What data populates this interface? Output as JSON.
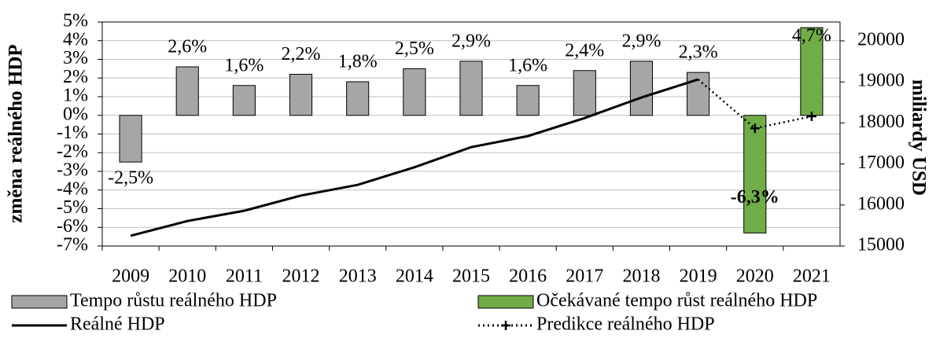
{
  "chart_data": {
    "type": "bar",
    "y_label": "změna reálného HDP",
    "y2_label": "miliardy USD",
    "categories": [
      "2009",
      "2010",
      "2011",
      "2012",
      "2013",
      "2014",
      "2015",
      "2016",
      "2017",
      "2018",
      "2019",
      "2020",
      "2021"
    ],
    "series": [
      {
        "name": "Tempo růstu reálného HDP",
        "type": "bar",
        "color": "#a6a6a6",
        "values": [
          -2.5,
          2.6,
          1.6,
          2.2,
          1.8,
          2.5,
          2.9,
          1.6,
          2.4,
          2.9,
          2.3,
          null,
          null
        ],
        "value_labels": [
          "-2,5%",
          "2,6%",
          "1,6%",
          "2,2%",
          "1,8%",
          "2,5%",
          "2,9%",
          "1,6%",
          "2,4%",
          "2,9%",
          "2,3%",
          null,
          null
        ]
      },
      {
        "name": "Očekávané tempo růst reálného HDP",
        "type": "bar",
        "color": "#70ad47",
        "values": [
          null,
          null,
          null,
          null,
          null,
          null,
          null,
          null,
          null,
          null,
          null,
          -6.3,
          4.7
        ],
        "value_labels": [
          null,
          null,
          null,
          null,
          null,
          null,
          null,
          null,
          null,
          null,
          null,
          "-6,3%",
          "4,7%"
        ]
      },
      {
        "name": "Reálné HDP",
        "type": "line",
        "axis": "y2",
        "color": "#000000",
        "linestyle": "solid",
        "values": [
          15250,
          15610,
          15860,
          16230,
          16490,
          16920,
          17410,
          17680,
          18120,
          18620,
          19060,
          null,
          null
        ]
      },
      {
        "name": "Predikce reálného HDP",
        "type": "line",
        "axis": "y2",
        "color": "#000000",
        "linestyle": "dotted",
        "marker": "+",
        "values": [
          null,
          null,
          null,
          null,
          null,
          null,
          null,
          null,
          null,
          null,
          19060,
          17870,
          18160
        ]
      }
    ],
    "ylim": [
      -7,
      5
    ],
    "yticks": [
      {
        "value": 5,
        "label": "5%"
      },
      {
        "value": 4,
        "label": "4%"
      },
      {
        "value": 3,
        "label": "3%"
      },
      {
        "value": 2,
        "label": "2%"
      },
      {
        "value": 1,
        "label": "1%"
      },
      {
        "value": 0,
        "label": "0%"
      },
      {
        "value": -1,
        "label": "-1%"
      },
      {
        "value": -2,
        "label": "-2%"
      },
      {
        "value": -3,
        "label": "-3%"
      },
      {
        "value": -4,
        "label": "-4%"
      },
      {
        "value": -5,
        "label": "-5%"
      },
      {
        "value": -6,
        "label": "-6%"
      },
      {
        "value": -7,
        "label": "-7%"
      }
    ],
    "y2lim": [
      15000,
      20460
    ],
    "y2ticks": [
      15000,
      16000,
      17000,
      18000,
      19000,
      20000
    ],
    "grid": true
  }
}
